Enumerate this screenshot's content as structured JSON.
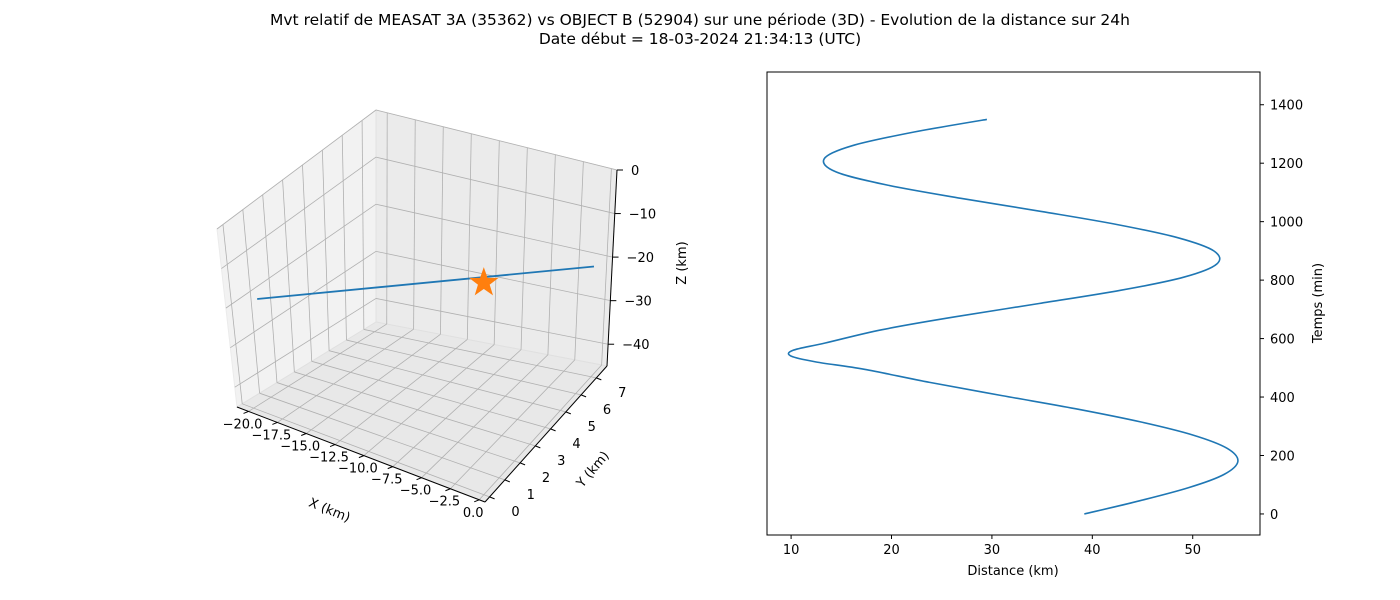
{
  "figure": {
    "title_line1": "Mvt relatif de MEASAT 3A (35362) vs OBJECT B (52904) sur une période (3D) - Evolution de la distance sur 24h",
    "title_line2": "Date début = 18-03-2024 21:34:13 (UTC)"
  },
  "chart_data": [
    {
      "type": "line3d",
      "xlabel": "X (km)",
      "ylabel": "Y (km)",
      "zlabel": "Z (km)",
      "xticks": [
        "−20.0",
        "−17.5",
        "−15.0",
        "−12.5",
        "−10.0",
        "−7.5",
        "−5.0",
        "−2.5",
        "0.0"
      ],
      "yticks": [
        "0",
        "1",
        "2",
        "3",
        "4",
        "5",
        "6",
        "7"
      ],
      "zticks": [
        "0",
        "−10",
        "−20",
        "−30",
        "−40"
      ],
      "xlim": [
        -21,
        0.5
      ],
      "ylim": [
        -0.3,
        7.7
      ],
      "zlim": [
        -45,
        0
      ],
      "grid": true,
      "series": [
        {
          "kind": "trajectory",
          "color": "#1f77b4",
          "points": [
            [
              -20.0,
              0.2,
              -22.3
            ],
            [
              0.0,
              7.2,
              -22.3
            ]
          ]
        },
        {
          "kind": "marker",
          "marker": "star",
          "color": "#ff7f0e",
          "points": [
            [
              0.0,
              0.0,
              0.0
            ]
          ]
        }
      ]
    },
    {
      "type": "line",
      "xlabel": "Distance (km)",
      "ylabel": "Temps (min)",
      "ylabel_position": "right",
      "xlim": [
        7.6,
        56.7
      ],
      "ylim": [
        -72,
        1512
      ],
      "xticks": [
        10,
        20,
        30,
        40,
        50
      ],
      "yticks": [
        0,
        200,
        400,
        600,
        800,
        1000,
        1200,
        1400
      ],
      "grid": false,
      "color": "#1f77b4",
      "series": [
        {
          "x": [
            39.2,
            44.7,
            49.6,
            53.1,
            54.5,
            53.4,
            50.0,
            44.8,
            38.3,
            31.0,
            23.8,
            17.3,
            12.5,
            10.0,
            10.2,
            13.4,
            19.0,
            26.4,
            34.7,
            42.8,
            49.1,
            52.4,
            52.1,
            48.5,
            42.5,
            34.9,
            26.9,
            19.6,
            14.5,
            13.3,
            16.1,
            22.0,
            29.5
          ],
          "y": [
            0,
            45,
            90,
            135,
            180,
            225,
            270,
            315,
            360,
            405,
            450,
            495,
            520,
            540,
            560,
            585,
            630,
            675,
            720,
            765,
            810,
            855,
            900,
            945,
            990,
            1035,
            1080,
            1125,
            1170,
            1215,
            1260,
            1305,
            1350
          ]
        }
      ]
    }
  ]
}
